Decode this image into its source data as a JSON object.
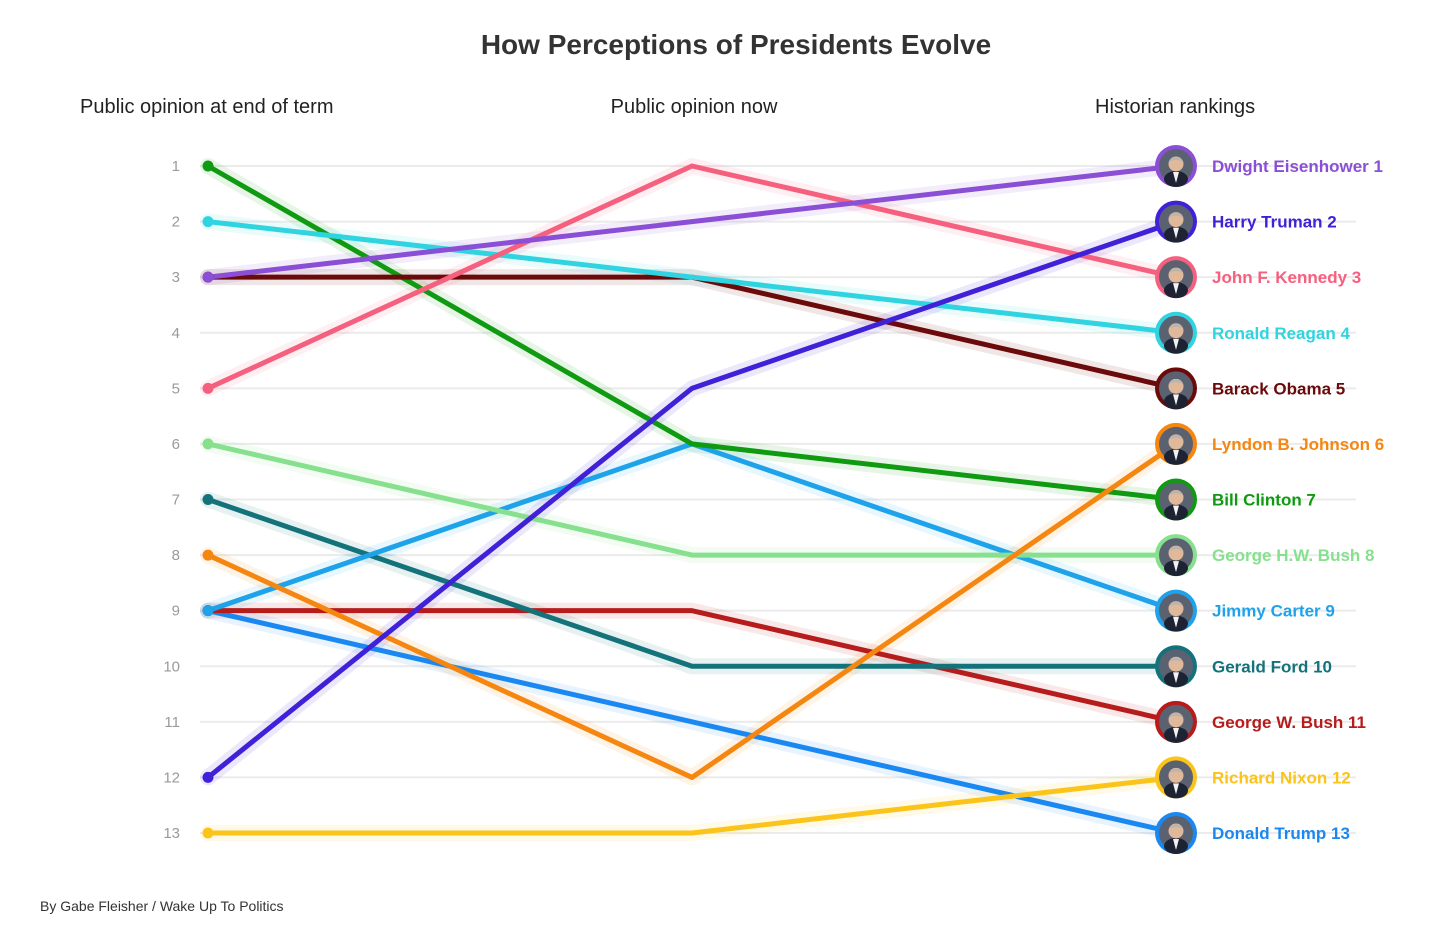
{
  "chart_data": {
    "type": "line",
    "title": "How Perceptions of Presidents Evolve",
    "categories": [
      "Public opinion at end of term",
      "Public opinion now",
      "Historian rankings"
    ],
    "y_ticks": [
      "1",
      "2",
      "3",
      "4",
      "5",
      "6",
      "7",
      "8",
      "9",
      "10",
      "11",
      "12",
      "13"
    ],
    "ylim": [
      1,
      13
    ],
    "y_inverted": true,
    "grid": true,
    "credit": "By Gabe Fleisher / Wake Up To Politics",
    "series": [
      {
        "name": "Dwight Eisenhower",
        "label": "Dwight Eisenhower 1",
        "values": [
          3,
          2,
          1
        ],
        "color": "#8b4fd6"
      },
      {
        "name": "Harry Truman",
        "label": "Harry Truman 2",
        "values": [
          12,
          5,
          2
        ],
        "color": "#4021d8"
      },
      {
        "name": "John F. Kennedy",
        "label": "John F. Kennedy 3",
        "values": [
          5,
          1,
          3
        ],
        "color": "#f5607e"
      },
      {
        "name": "Ronald Reagan",
        "label": "Ronald Reagan 4",
        "values": [
          2,
          3,
          4
        ],
        "color": "#2fd4e0"
      },
      {
        "name": "Barack Obama",
        "label": "Barack Obama 5",
        "values": [
          3,
          3,
          5
        ],
        "color": "#6b0a0a"
      },
      {
        "name": "Lyndon B. Johnson",
        "label": "Lyndon B. Johnson 6",
        "values": [
          8,
          12,
          6
        ],
        "color": "#f5860f"
      },
      {
        "name": "Bill Clinton",
        "label": "Bill Clinton 7",
        "values": [
          1,
          6,
          7
        ],
        "color": "#0f9a11"
      },
      {
        "name": "George H.W. Bush",
        "label": "George H.W. Bush 8",
        "values": [
          6,
          8,
          8
        ],
        "color": "#86e08e"
      },
      {
        "name": "Jimmy Carter",
        "label": "Jimmy Carter 9",
        "values": [
          9,
          6,
          9
        ],
        "color": "#1ea3ea"
      },
      {
        "name": "Gerald Ford",
        "label": "Gerald Ford 10",
        "values": [
          7,
          10,
          10
        ],
        "color": "#13727a"
      },
      {
        "name": "George W. Bush",
        "label": "George W. Bush 11",
        "values": [
          9,
          9,
          11
        ],
        "color": "#b71c1c"
      },
      {
        "name": "Richard Nixon",
        "label": "Richard Nixon 12",
        "values": [
          13,
          13,
          12
        ],
        "color": "#fbc41a"
      },
      {
        "name": "Donald Trump",
        "label": "Donald Trump 13",
        "values": [
          9,
          11,
          13
        ],
        "color": "#1a88f0"
      }
    ]
  }
}
